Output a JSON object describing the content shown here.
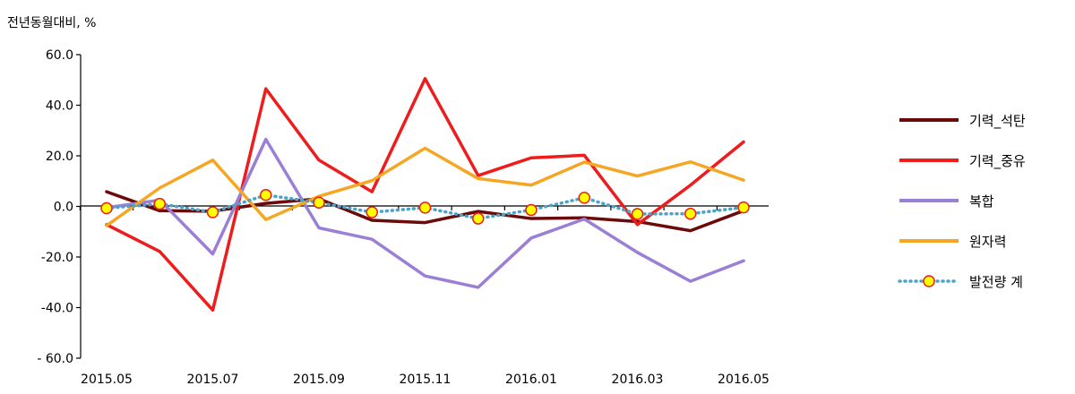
{
  "chart_data": {
    "type": "line",
    "ylabel": "전년동월대비, %",
    "ylim": [
      -60,
      60
    ],
    "yticks": [
      "60.0",
      "40.0",
      "20.0",
      "0.0",
      "-20.0",
      "-40.0",
      "- 60.0"
    ],
    "ytick_values": [
      60,
      40,
      20,
      0,
      -20,
      -40,
      -60
    ],
    "x": [
      "2015.05",
      "2015.06",
      "2015.07",
      "2015.08",
      "2015.09",
      "2015.10",
      "2015.11",
      "2015.12",
      "2016.01",
      "2016.02",
      "2016.03",
      "2016.04",
      "2016.05"
    ],
    "xticks": [
      "2015.05",
      "2015.07",
      "2015.09",
      "2015.11",
      "2016.01",
      "2016.03",
      "2016.05"
    ],
    "grid": false,
    "legend_position": "right",
    "series": [
      {
        "name": "기력_석탄",
        "color": "#6b0a0a",
        "style": "solid",
        "values": [
          5.8,
          -1.7,
          -1.9,
          1.2,
          3.0,
          -5.5,
          -6.4,
          -2.0,
          -4.8,
          -4.5,
          -6.0,
          -9.6,
          -1.7
        ]
      },
      {
        "name": "기력_중유",
        "color": "#ee1c1c",
        "style": "solid",
        "values": [
          -7.2,
          -17.8,
          -41.0,
          46.5,
          18.3,
          5.8,
          50.5,
          12.2,
          19.2,
          20.2,
          -7.2,
          8.4,
          25.5
        ]
      },
      {
        "name": "복합",
        "color": "#9b7fd4",
        "style": "solid",
        "values": [
          -0.5,
          2.5,
          -18.8,
          26.5,
          -8.5,
          -13.0,
          -27.5,
          -32.0,
          -12.5,
          -5.0,
          -18.2,
          -29.6,
          -21.5
        ]
      },
      {
        "name": "원자력",
        "color": "#f5a623",
        "style": "solid",
        "values": [
          -7.6,
          7.3,
          18.3,
          -5.2,
          4.0,
          10.2,
          23.0,
          11.0,
          8.4,
          17.5,
          12.0,
          17.6,
          10.4
        ]
      },
      {
        "name": "발전량 계",
        "color": "#4aa3c8",
        "style": "dotted-markers",
        "marker_fill": "#ffff00",
        "marker_edge": "#ee1c1c",
        "values": [
          -0.7,
          1.0,
          -2.3,
          4.5,
          1.5,
          -2.3,
          -0.5,
          -4.8,
          -1.4,
          3.4,
          -3.0,
          -2.9,
          -0.4
        ]
      }
    ]
  }
}
